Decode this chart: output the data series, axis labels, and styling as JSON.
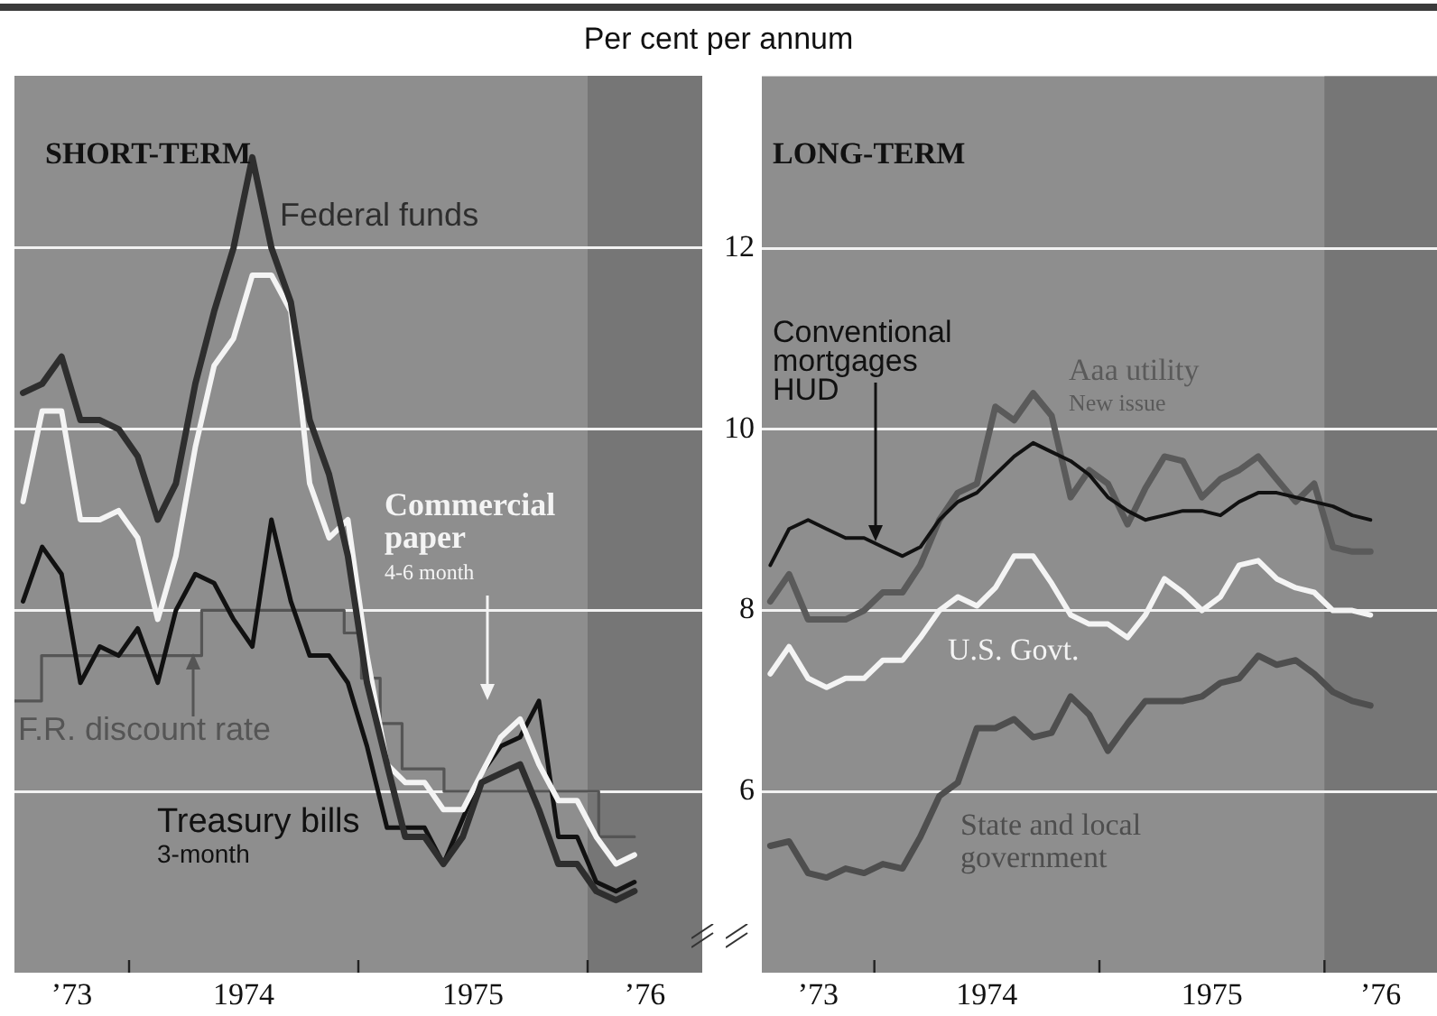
{
  "chart_data": [
    {
      "type": "line",
      "title": "SHORT-TERM",
      "ylabel": "Per cent per annum",
      "tick_labels": "x",
      "grid": "y",
      "xlim": [
        "1973-07-01",
        "1976-07-01"
      ],
      "xticks": [
        {
          "value": "1973-10-01",
          "label": "’73"
        },
        {
          "value": "1974-01-01",
          "label": null
        },
        {
          "value": "1974-07-01",
          "label": "1974"
        },
        {
          "value": "1975-01-01",
          "label": null
        },
        {
          "value": "1975-07-01",
          "label": "1975"
        },
        {
          "value": "1976-01-01",
          "label": null
        },
        {
          "value": "1976-04-01",
          "label": "’76"
        }
      ],
      "ylim": [
        4,
        13.9
      ],
      "yticks": [
        6,
        8,
        10,
        12
      ],
      "bands": [
        {
          "axis": "x",
          "from": "1976-01-01",
          "to": "1976-07-01",
          "color": "#767676"
        }
      ],
      "x": [
        "1973-07-15",
        "1973-08-15",
        "1973-09-15",
        "1973-10-15",
        "1973-11-15",
        "1973-12-15",
        "1974-01-15",
        "1974-02-15",
        "1974-03-15",
        "1974-04-15",
        "1974-05-15",
        "1974-06-15",
        "1974-07-15",
        "1974-08-15",
        "1974-09-15",
        "1974-10-15",
        "1974-11-15",
        "1974-12-15",
        "1975-01-15",
        "1975-02-15",
        "1975-03-15",
        "1975-04-15",
        "1975-05-15",
        "1975-06-15",
        "1975-07-15",
        "1975-08-15",
        "1975-09-15",
        "1975-10-15",
        "1975-11-15",
        "1975-12-15",
        "1976-01-15",
        "1976-02-15",
        "1976-03-15"
      ],
      "series": [
        {
          "name": "Federal funds",
          "color": "#2e2e2e",
          "values": [
            10.4,
            10.5,
            10.8,
            10.1,
            10.1,
            10.0,
            9.7,
            9.0,
            9.4,
            10.5,
            11.3,
            12.0,
            13.0,
            12.0,
            11.4,
            10.1,
            9.5,
            8.6,
            7.2,
            6.3,
            5.5,
            5.5,
            5.2,
            5.5,
            6.1,
            6.2,
            6.3,
            5.8,
            5.2,
            5.2,
            4.9,
            4.8,
            4.9
          ]
        },
        {
          "name": "Commercial paper 4-6 month",
          "color": "#f4f4f4",
          "values": [
            9.2,
            10.2,
            10.2,
            9.0,
            9.0,
            9.1,
            8.8,
            7.9,
            8.6,
            9.8,
            10.7,
            11.0,
            11.7,
            11.7,
            11.3,
            9.4,
            8.8,
            9.0,
            7.5,
            6.3,
            6.1,
            6.1,
            5.8,
            5.8,
            6.2,
            6.6,
            6.8,
            6.3,
            5.9,
            5.9,
            5.5,
            5.2,
            5.3
          ]
        },
        {
          "name": "Treasury bills 3-month",
          "color": "#111111",
          "values": [
            8.1,
            8.7,
            8.4,
            7.2,
            7.6,
            7.5,
            7.8,
            7.2,
            8.0,
            8.4,
            8.3,
            7.9,
            7.6,
            9.0,
            8.1,
            7.5,
            7.5,
            7.2,
            6.5,
            5.6,
            5.6,
            5.6,
            5.2,
            5.7,
            6.2,
            6.5,
            6.6,
            7.0,
            5.5,
            5.5,
            5.0,
            4.9,
            5.0
          ]
        },
        {
          "name": "F.R. discount rate",
          "type": "step",
          "color": "#555555",
          "x": [
            "1973-07-01",
            "1973-08-14",
            "1974-04-25",
            "1974-12-09",
            "1975-01-06",
            "1975-02-05",
            "1975-03-10",
            "1975-05-16",
            "1976-01-19",
            "1976-03-15"
          ],
          "values": [
            7.0,
            7.5,
            8.0,
            7.75,
            7.25,
            6.75,
            6.25,
            6.0,
            5.5,
            5.5
          ]
        }
      ]
    },
    {
      "type": "line",
      "title": "LONG-TERM",
      "grid": "y",
      "xlim": [
        "1973-07-01",
        "1976-07-01"
      ],
      "xticks": [
        {
          "value": "1973-10-01",
          "label": "’73"
        },
        {
          "value": "1974-01-01",
          "label": null
        },
        {
          "value": "1974-07-01",
          "label": "1974"
        },
        {
          "value": "1975-01-01",
          "label": null
        },
        {
          "value": "1975-07-01",
          "label": "1975"
        },
        {
          "value": "1976-01-01",
          "label": null
        },
        {
          "value": "1976-04-01",
          "label": "’76"
        }
      ],
      "ylim": [
        4,
        13.9
      ],
      "yticks": [
        6,
        8,
        10,
        12
      ],
      "bands": [
        {
          "axis": "x",
          "from": "1976-01-01",
          "to": "1976-07-01",
          "color": "#767676"
        }
      ],
      "x": [
        "1973-07-15",
        "1973-08-15",
        "1973-09-15",
        "1973-10-15",
        "1973-11-15",
        "1973-12-15",
        "1974-01-15",
        "1974-02-15",
        "1974-03-15",
        "1974-04-15",
        "1974-05-15",
        "1974-06-15",
        "1974-07-15",
        "1974-08-15",
        "1974-09-15",
        "1974-10-15",
        "1974-11-15",
        "1974-12-15",
        "1975-01-15",
        "1975-02-15",
        "1975-03-15",
        "1975-04-15",
        "1975-05-15",
        "1975-06-15",
        "1975-07-15",
        "1975-08-15",
        "1975-09-15",
        "1975-10-15",
        "1975-11-15",
        "1975-12-15",
        "1976-01-15",
        "1976-02-15",
        "1976-03-15"
      ],
      "series": [
        {
          "name": "Conventional mortgages HUD",
          "color": "#111111",
          "values": [
            8.5,
            8.9,
            9.0,
            8.9,
            8.8,
            8.8,
            8.7,
            8.6,
            8.7,
            9.0,
            9.2,
            9.3,
            9.5,
            9.7,
            9.85,
            9.75,
            9.65,
            9.5,
            9.25,
            9.1,
            9.0,
            9.05,
            9.1,
            9.1,
            9.05,
            9.2,
            9.3,
            9.3,
            9.25,
            9.2,
            9.15,
            9.05,
            9.0
          ]
        },
        {
          "name": "Aaa utility New issue",
          "color": "#5a5a5a",
          "values": [
            8.1,
            8.4,
            7.9,
            7.9,
            7.9,
            8.0,
            8.2,
            8.2,
            8.5,
            9.0,
            9.3,
            9.4,
            10.25,
            10.1,
            10.4,
            10.15,
            9.25,
            9.55,
            9.4,
            8.95,
            9.35,
            9.7,
            9.65,
            9.25,
            9.45,
            9.55,
            9.7,
            9.45,
            9.2,
            9.4,
            8.7,
            8.65,
            8.65
          ]
        },
        {
          "name": "U.S. Govt.",
          "color": "#f4f4f4",
          "values": [
            7.3,
            7.6,
            7.25,
            7.15,
            7.25,
            7.25,
            7.45,
            7.45,
            7.7,
            8.0,
            8.15,
            8.05,
            8.25,
            8.6,
            8.6,
            8.3,
            7.95,
            7.85,
            7.85,
            7.7,
            7.95,
            8.35,
            8.2,
            8.0,
            8.15,
            8.5,
            8.55,
            8.35,
            8.25,
            8.2,
            8.0,
            8.0,
            7.95
          ]
        },
        {
          "name": "State and local government",
          "color": "#4e4e4e",
          "values": [
            5.4,
            5.45,
            5.1,
            5.05,
            5.15,
            5.1,
            5.2,
            5.15,
            5.5,
            5.95,
            6.1,
            6.7,
            6.7,
            6.8,
            6.6,
            6.65,
            7.05,
            6.85,
            6.45,
            6.75,
            7.0,
            7.0,
            7.0,
            7.05,
            7.2,
            7.25,
            7.5,
            7.4,
            7.45,
            7.3,
            7.1,
            7.0,
            6.95
          ]
        }
      ]
    }
  ]
}
